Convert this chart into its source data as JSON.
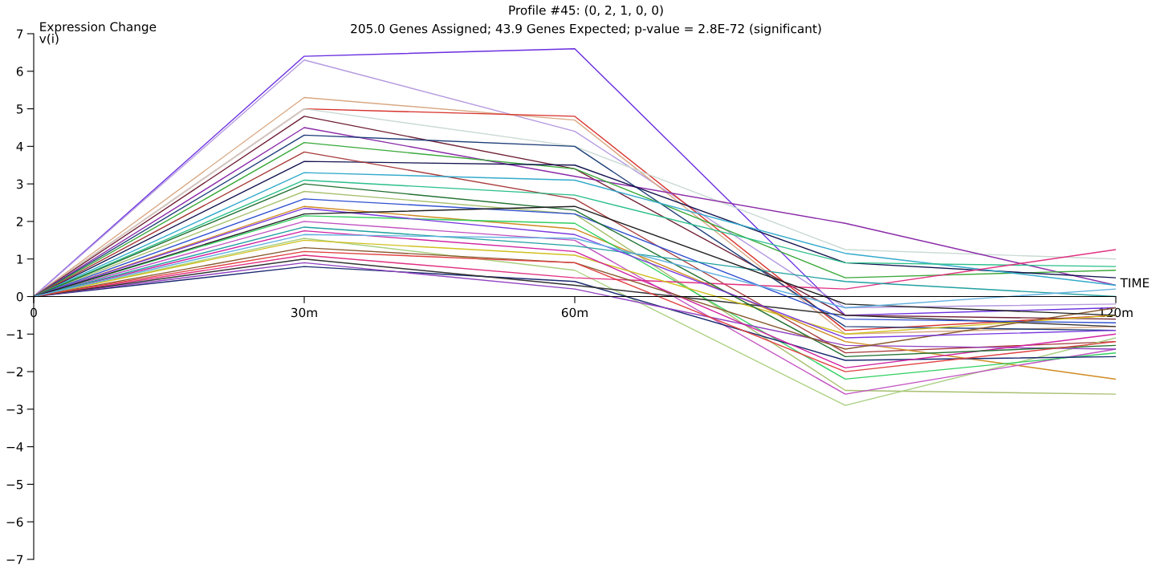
{
  "chart_data": {
    "type": "line",
    "title": "Profile #45: (0, 2, 1, 0, 0)",
    "subtitle": "205.0 Genes Assigned; 43.9 Genes Expected; p-value = 2.8E-72 (significant)",
    "xlabel": "TIME",
    "ylabel": "Expression Change",
    "annotations": [
      "v(i)"
    ],
    "x": [
      0,
      30,
      60,
      90,
      120
    ],
    "xlim": [
      0,
      120
    ],
    "xticks": [
      {
        "value": 0,
        "label": "0"
      },
      {
        "value": 30,
        "label": "30m"
      },
      {
        "value": 60,
        "label": "60m"
      },
      {
        "value": 120,
        "label": "120m"
      }
    ],
    "ylim": [
      -7,
      7
    ],
    "yticks": [
      -7,
      -6,
      -5,
      -4,
      -3,
      -2,
      -1,
      0,
      1,
      2,
      3,
      4,
      5,
      6,
      7
    ],
    "grid": false,
    "legend": false,
    "marker": "none",
    "line_style": "solid",
    "series": [
      {
        "color": "#6a2ee0",
        "values": [
          0,
          6.4,
          6.6,
          -0.5,
          -0.3
        ]
      },
      {
        "color": "#b49ae0",
        "values": [
          0,
          6.3,
          4.4,
          -0.3,
          -0.2
        ]
      },
      {
        "color": "#d9a883",
        "values": [
          0,
          5.3,
          4.7,
          -1.0,
          -0.8
        ]
      },
      {
        "color": "#d8302a",
        "values": [
          0,
          5.0,
          4.8,
          -0.9,
          -0.5
        ]
      },
      {
        "color": "#c9dad2",
        "values": [
          0,
          5.0,
          4.0,
          1.25,
          1.0
        ]
      },
      {
        "color": "#6e1f33",
        "values": [
          0,
          4.8,
          3.4,
          -0.5,
          -0.6
        ]
      },
      {
        "color": "#8a2aa8",
        "values": [
          0,
          4.5,
          3.2,
          1.95,
          0.3
        ]
      },
      {
        "color": "#1f3f7a",
        "values": [
          0,
          4.3,
          4.0,
          -0.8,
          -0.9
        ]
      },
      {
        "color": "#3aa83a",
        "values": [
          0,
          4.1,
          3.4,
          0.5,
          0.7
        ]
      },
      {
        "color": "#141450",
        "values": [
          0,
          3.6,
          3.5,
          0.9,
          0.5
        ]
      },
      {
        "color": "#a83a3a",
        "values": [
          0,
          3.85,
          2.6,
          -1.5,
          -1.2
        ]
      },
      {
        "color": "#33aacc",
        "values": [
          0,
          3.3,
          3.1,
          1.15,
          0.3
        ]
      },
      {
        "color": "#2bbf8a",
        "values": [
          0,
          3.1,
          2.7,
          0.9,
          0.8
        ]
      },
      {
        "color": "#a8c070",
        "values": [
          0,
          2.8,
          2.2,
          -2.5,
          -2.6
        ]
      },
      {
        "color": "#d08a20",
        "values": [
          0,
          2.4,
          1.8,
          -1.2,
          -2.2
        ]
      },
      {
        "color": "#a8d080",
        "values": [
          0,
          1.55,
          0.7,
          -2.9,
          -1.1
        ]
      },
      {
        "color": "#c050c0",
        "values": [
          0,
          2.0,
          1.5,
          -2.6,
          -1.4
        ]
      },
      {
        "color": "#30d060",
        "values": [
          0,
          2.15,
          1.95,
          -2.2,
          -1.5
        ]
      },
      {
        "color": "#e03080",
        "values": [
          0,
          1.1,
          0.5,
          0.2,
          1.25
        ]
      },
      {
        "color": "#1a2a70",
        "values": [
          0,
          0.8,
          0.4,
          -1.7,
          -1.6
        ]
      },
      {
        "color": "#9040c0",
        "values": [
          0,
          0.9,
          0.2,
          -1.3,
          -1.4
        ]
      },
      {
        "color": "#333333",
        "values": [
          0,
          1.0,
          0.3,
          -0.5,
          -0.8
        ]
      },
      {
        "color": "#d0c020",
        "values": [
          0,
          1.5,
          1.1,
          -1.0,
          -0.5
        ]
      },
      {
        "color": "#3050d0",
        "values": [
          0,
          2.6,
          2.2,
          -0.6,
          -0.7
        ]
      },
      {
        "color": "#d020a0",
        "values": [
          0,
          1.75,
          1.2,
          -1.9,
          -1.0
        ]
      },
      {
        "color": "#207030",
        "values": [
          0,
          3.0,
          2.3,
          -1.6,
          -1.3
        ]
      },
      {
        "color": "#8a5a30",
        "values": [
          0,
          1.3,
          0.9,
          -1.4,
          -0.3
        ]
      },
      {
        "color": "#20a0a0",
        "values": [
          0,
          1.85,
          1.35,
          0.4,
          0.0
        ]
      },
      {
        "color": "#7a3ae0",
        "values": [
          0,
          2.35,
          1.65,
          -1.1,
          -0.9
        ]
      },
      {
        "color": "#e04040",
        "values": [
          0,
          1.2,
          0.9,
          -2.0,
          -1.2
        ]
      },
      {
        "color": "#202020",
        "values": [
          0,
          2.2,
          2.4,
          -0.2,
          -0.5
        ]
      },
      {
        "color": "#60b0e0",
        "values": [
          0,
          1.65,
          1.55,
          -0.3,
          0.2
        ]
      }
    ]
  }
}
